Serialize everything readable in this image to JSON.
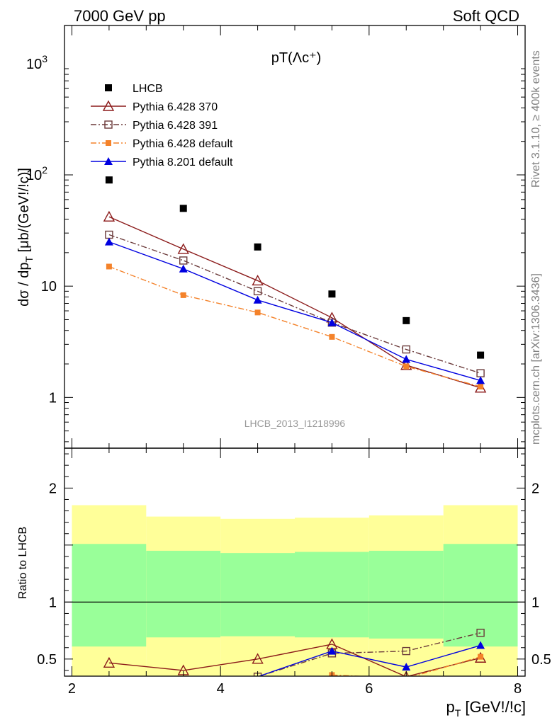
{
  "header": {
    "left": "7000 GeV pp",
    "right": "Soft QCD"
  },
  "title": "pT(Λc⁺)",
  "watermark": "LHCB_2013_I1218996",
  "side_text": {
    "rivet": "Rivet 3.1.10, ≥ 400k events",
    "source": "mcplots.cern.ch [arXiv:1306.3436]"
  },
  "colors": {
    "lhcb": "#000000",
    "p370": "#8b1a1a",
    "p391": "#6b3a3a",
    "p6def": "#f4822a",
    "p8def": "#0000e0",
    "band_outer": "#ffff99",
    "band_inner": "#99ff99"
  },
  "chart_data": [
    {
      "type": "scatter",
      "panel": "main",
      "title": "pT(Λc⁺)",
      "ylabel": "dσ / dp_T [μb/(GeV!/!c)]",
      "yscale": "log",
      "xlim": [
        1.9,
        8.1
      ],
      "ylim": [
        0.35,
        2200
      ],
      "yticks": [
        {
          "v": 1,
          "label": "1"
        },
        {
          "v": 10,
          "label": "10"
        },
        {
          "v": 100,
          "label": "10",
          "sup": "2"
        },
        {
          "v": 1000,
          "label": "10",
          "sup": "3"
        }
      ],
      "legend_position": "top-left",
      "series": [
        {
          "name": "LHCB",
          "key": "lhcb",
          "style": "data",
          "x": [
            2.5,
            3.5,
            4.5,
            5.5,
            6.5,
            7.5
          ],
          "y": [
            90,
            50,
            22.5,
            8.5,
            4.9,
            2.4
          ]
        },
        {
          "name": "Pythia 6.428 370",
          "key": "p370",
          "style": "triangle-open",
          "x": [
            2.5,
            3.5,
            4.5,
            5.5,
            6.5,
            7.5
          ],
          "y": [
            42,
            21.5,
            11.2,
            5.2,
            1.95,
            1.22
          ]
        },
        {
          "name": "Pythia 6.428 391",
          "key": "p391",
          "style": "square-open",
          "dash": "8,3,2,3",
          "x": [
            2.5,
            3.5,
            4.5,
            5.5,
            6.5,
            7.5
          ],
          "y": [
            29,
            17,
            9.0,
            4.7,
            2.7,
            1.65
          ]
        },
        {
          "name": "Pythia 6.428 default",
          "key": "p6def",
          "style": "square-filled",
          "dash": "8,3,2,3",
          "x": [
            2.5,
            3.5,
            4.5,
            5.5,
            6.5,
            7.5
          ],
          "y": [
            15,
            8.3,
            5.8,
            3.5,
            1.9,
            1.25
          ]
        },
        {
          "name": "Pythia 8.201 default",
          "key": "p8def",
          "style": "triangle-filled",
          "x": [
            2.5,
            3.5,
            4.5,
            5.5,
            6.5,
            7.5
          ],
          "y": [
            25,
            14.3,
            7.5,
            4.7,
            2.2,
            1.42
          ]
        }
      ]
    },
    {
      "type": "line",
      "panel": "ratio",
      "ylabel": "Ratio to LHCB",
      "xlabel": "p_T [GeV!/!c]",
      "xlim": [
        1.9,
        8.1
      ],
      "ylim": [
        0.35,
        2.35
      ],
      "xticks": [
        2,
        4,
        6,
        8
      ],
      "yticks": [
        0.5,
        1,
        2
      ],
      "reference_line": 1,
      "bands": {
        "edges": [
          2,
          3,
          4,
          5,
          6,
          7,
          8
        ],
        "outer_upper": [
          1.85,
          1.75,
          1.73,
          1.74,
          1.76,
          1.85
        ],
        "outer_lower": [
          0.35,
          0.35,
          0.35,
          0.35,
          0.35,
          0.35
        ],
        "inner_upper": [
          1.51,
          1.45,
          1.43,
          1.44,
          1.45,
          1.51
        ],
        "inner_lower": [
          0.61,
          0.69,
          0.7,
          0.69,
          0.68,
          0.61
        ]
      },
      "series": [
        {
          "name": "Pythia 6.428 370",
          "key": "p370",
          "style": "triangle-open",
          "x": [
            2.5,
            3.5,
            4.5,
            5.5,
            6.5,
            7.5
          ],
          "y": [
            0.466,
            0.4,
            0.5,
            0.63,
            0.345,
            0.51
          ]
        },
        {
          "name": "Pythia 6.428 391",
          "key": "p391",
          "style": "square-open",
          "dash": "8,3,2,3",
          "x": [
            4.5,
            5.5,
            6.5,
            7.5
          ],
          "y": [
            0.345,
            0.55,
            0.57,
            0.73
          ]
        },
        {
          "name": "Pythia 6.428 default",
          "key": "p6def",
          "style": "square-filled",
          "dash": "8,3,2,3",
          "x": [
            5.5,
            6.5,
            7.5
          ],
          "y": [
            0.36,
            0.33,
            0.52
          ]
        },
        {
          "name": "Pythia 8.201 default",
          "key": "p8def",
          "style": "triangle-filled",
          "x": [
            4.3,
            5.5,
            6.5,
            7.5
          ],
          "y": [
            0.3,
            0.57,
            0.43,
            0.62
          ]
        }
      ]
    }
  ]
}
